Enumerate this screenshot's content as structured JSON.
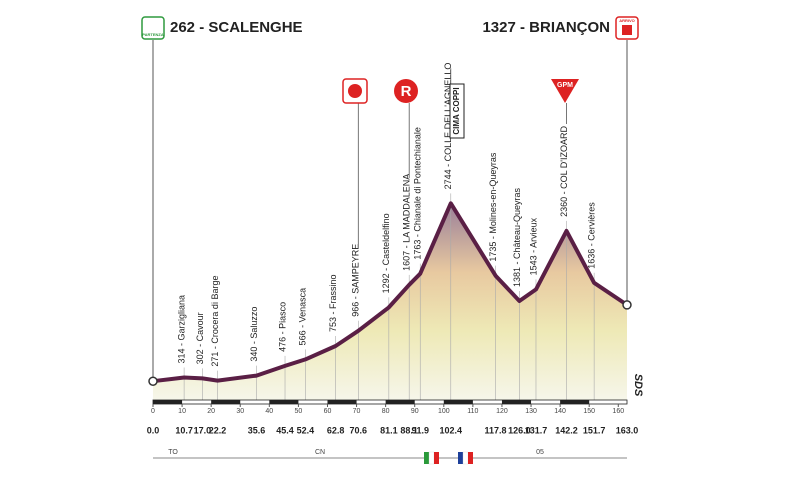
{
  "chart_data": {
    "type": "area",
    "x": [
      0,
      10.7,
      17.0,
      22.2,
      35.6,
      45.4,
      52.4,
      62.8,
      70.6,
      81.1,
      88.1,
      91.9,
      102.4,
      117.8,
      126.0,
      131.7,
      142.2,
      151.7,
      163
    ],
    "x_labels": [
      "0.0",
      "10.7",
      "17.0",
      "22.2",
      "35.6",
      "45.4",
      "52.4",
      "62.8",
      "70.6",
      "81.1",
      "88.1",
      "91.9",
      "102.4",
      "117.8",
      "126.0",
      "131.7",
      "142.2",
      "151.7",
      "163.0"
    ],
    "series": [
      {
        "color": "#5a1f45",
        "values": [
          262,
          314,
          302,
          271,
          340,
          476,
          566,
          753,
          966,
          1292,
          1607,
          1763,
          2744,
          1735,
          1381,
          1543,
          2360,
          1636,
          1327
        ]
      }
    ],
    "point_labels": [
      "262 - SCALENGHE",
      "314 - Garzigliana",
      "302 - Cavour",
      "271 - Crocera di Barge",
      "340 - Saluzzo",
      "476 - Piasco",
      "566 - Venasca",
      "753 - Frassino",
      "966 - SAMPEYRE",
      "1292 - Casteldelfino",
      "1607 - LA MADDALENA",
      "1763 - Chianale di Pontechianale",
      "2744 - COLLE DELL'AGNELLO",
      "1735 - Molines-en-Queyras",
      "1381 - Château-Queyras",
      "1543 - Arvieux",
      "2360 - COL D'IZOARD",
      "1636 - Cervières",
      "1327 - BRIANÇON"
    ],
    "xlim": [
      0,
      163
    ],
    "ylim": [
      0,
      3000
    ],
    "xticks": [
      0,
      10,
      20,
      30,
      40,
      50,
      60,
      70,
      80,
      90,
      100,
      110,
      120,
      130,
      140,
      150,
      160
    ],
    "annotations": {
      "start_icon": "PARTENZA",
      "finish_icon": "ARRIVO",
      "sprint": "R",
      "cima_coppi": "CIMA COPPI",
      "gpm": "GPM",
      "logo": "SDS"
    },
    "provinces": [
      "TO",
      "CN",
      "05"
    ]
  }
}
